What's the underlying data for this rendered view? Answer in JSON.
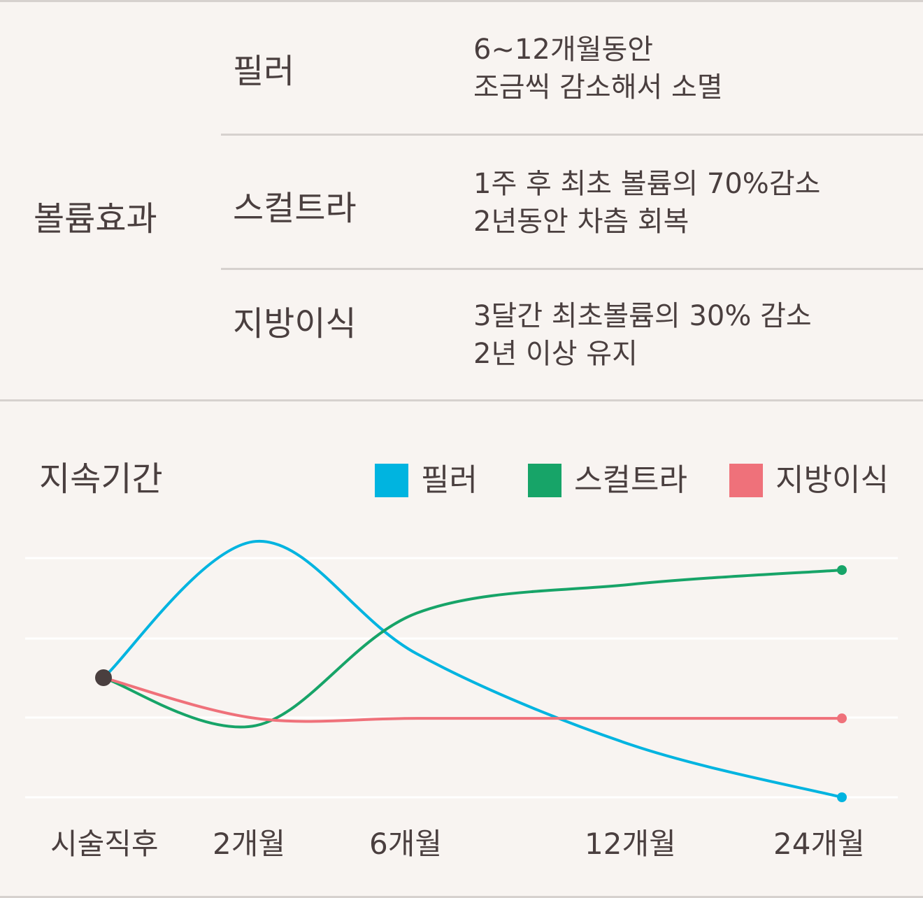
{
  "table": {
    "category": "볼륨효과",
    "rows": [
      {
        "name": "필러",
        "lines": [
          "6~12개월동안",
          "조금씩 감소해서 소멸"
        ]
      },
      {
        "name": "스컬트라",
        "lines": [
          "1주 후 최초 볼륨의 70%감소",
          "2년동안 차츰 회복"
        ]
      },
      {
        "name": "지방이식",
        "lines": [
          "3달간 최초볼륨의 30% 감소",
          "2년 이상 유지"
        ]
      }
    ]
  },
  "chart_data": {
    "type": "line",
    "title": "지속기간",
    "categories": [
      "시술직후",
      "2개월",
      "6개월",
      "12개월",
      "24개월"
    ],
    "legend_position": "top-right",
    "grid": true,
    "ylim": [
      0,
      100
    ],
    "series": [
      {
        "name": "필러",
        "color": "#00b4e0",
        "x": [
          0,
          1,
          2,
          3,
          4
        ],
        "values": [
          50,
          107,
          60,
          22,
          0
        ]
      },
      {
        "name": "스컬트라",
        "color": "#17a468",
        "x": [
          0,
          1,
          2,
          3,
          4
        ],
        "values": [
          50,
          30,
          77,
          89,
          95
        ]
      },
      {
        "name": "지방이식",
        "color": "#ef717a",
        "x": [
          0,
          1,
          2,
          3,
          4
        ],
        "values": [
          50,
          33,
          33,
          33,
          33
        ]
      }
    ]
  },
  "colors": {
    "background": "#f8f4f1",
    "divider": "#d6d1ce",
    "text": "#4a3f3f",
    "origin_dot": "#4a3f3f"
  }
}
